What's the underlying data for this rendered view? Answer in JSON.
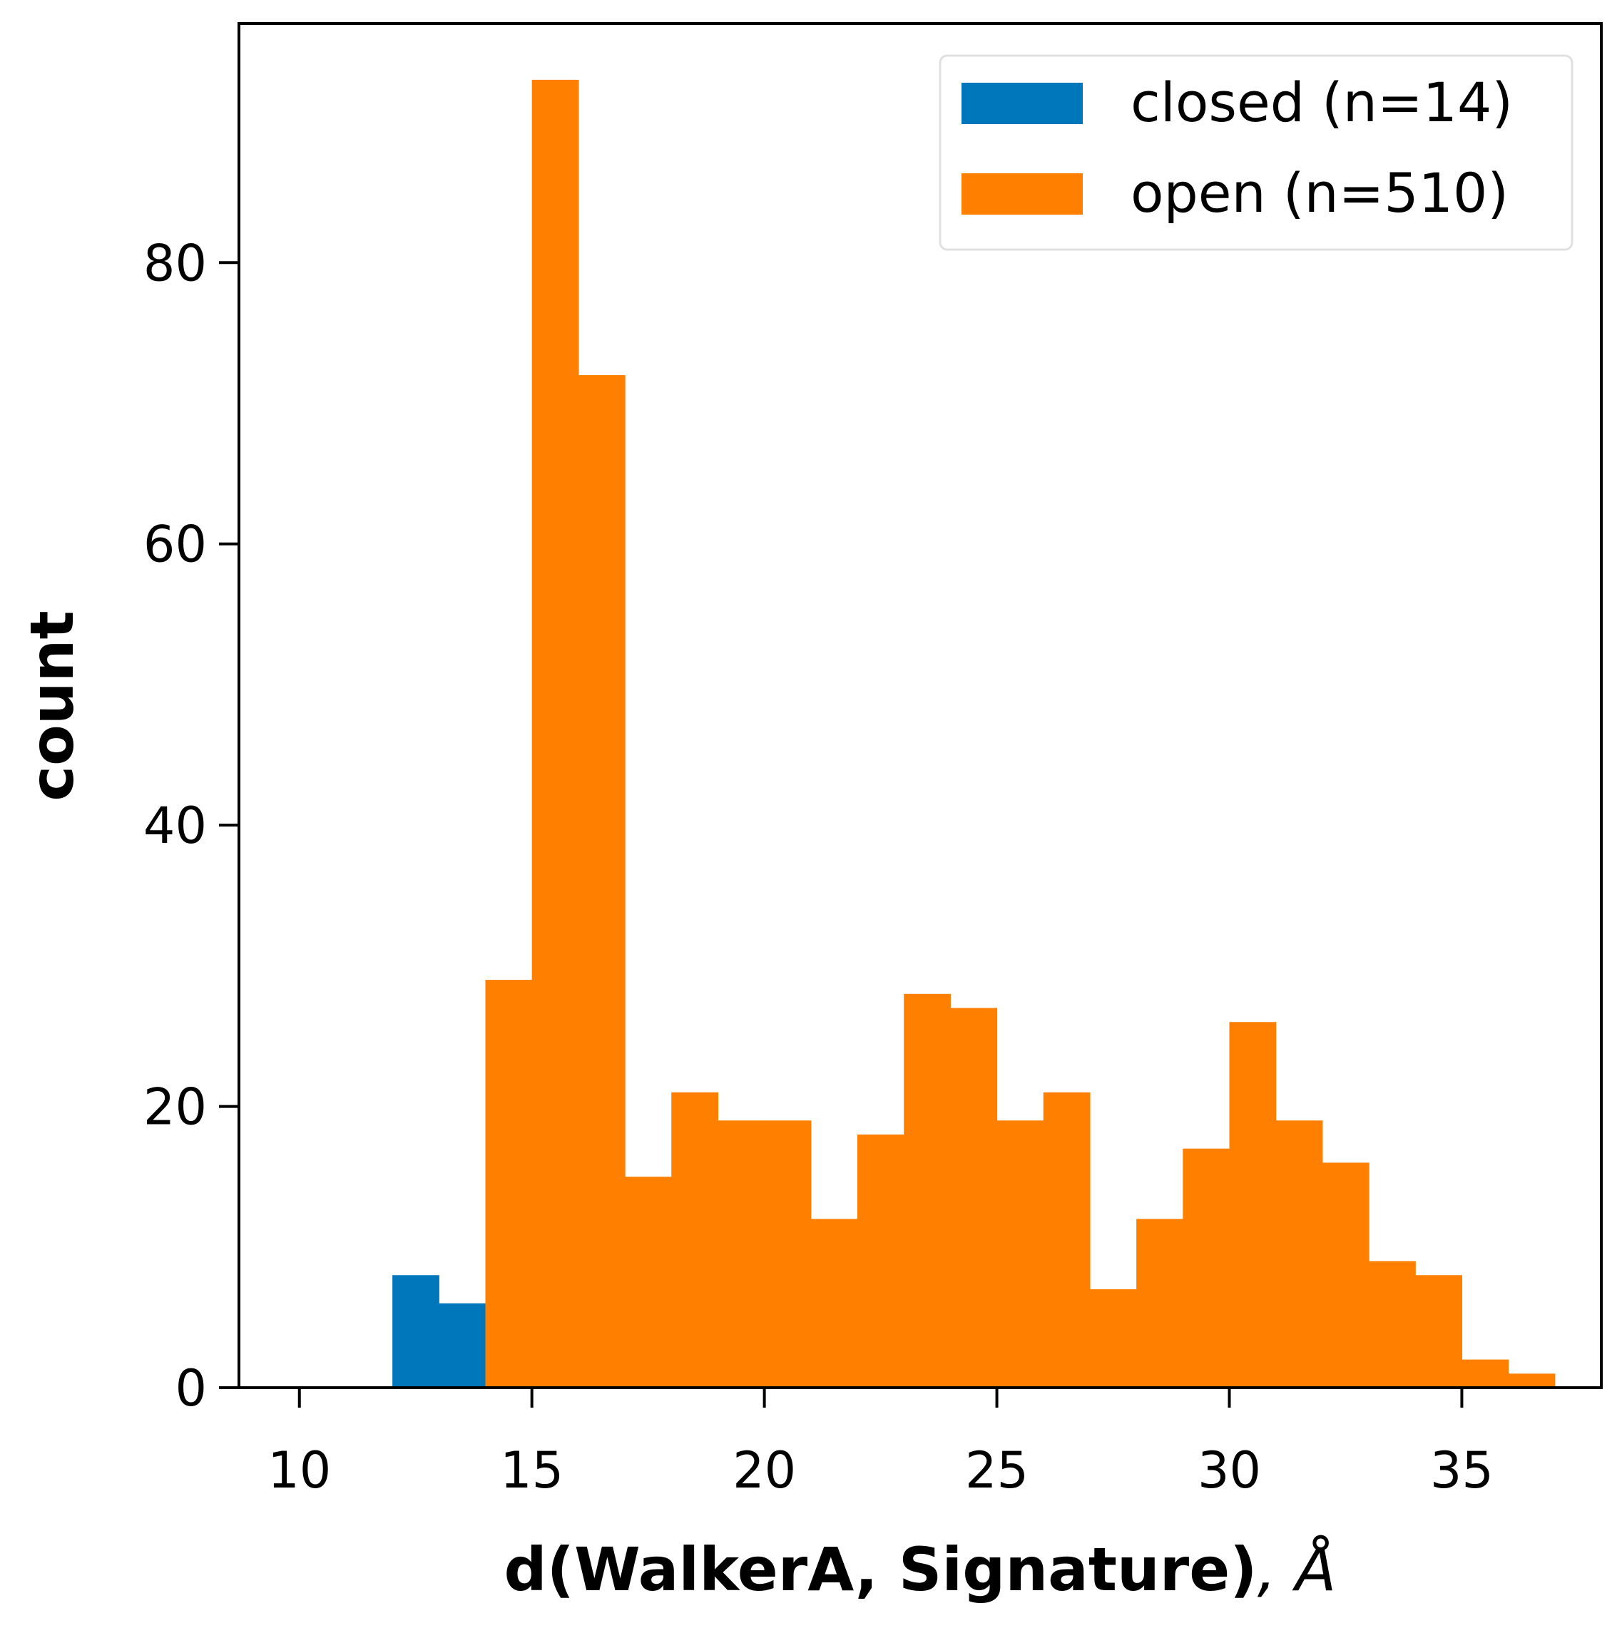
{
  "chart_data": {
    "type": "bar",
    "title": "",
    "xlabel_main": "d(WalkerA, Signature)",
    "xlabel_unit": ", Å",
    "ylabel": "count",
    "xlim": [
      8.7,
      38.0
    ],
    "ylim": [
      0,
      97
    ],
    "xticks": [
      10,
      15,
      20,
      25,
      30,
      35
    ],
    "yticks": [
      0,
      20,
      40,
      60,
      80
    ],
    "grid": false,
    "legend_position": "top-right",
    "series": [
      {
        "name": "closed (n=14)",
        "color": "#0077bb",
        "bins": [
          {
            "x0": 12,
            "x1": 13,
            "count": 8
          },
          {
            "x0": 13,
            "x1": 14,
            "count": 6
          }
        ]
      },
      {
        "name": "open (n=510)",
        "color": "#ff7f00",
        "bins": [
          {
            "x0": 14,
            "x1": 15,
            "count": 29
          },
          {
            "x0": 15,
            "x1": 16,
            "count": 93
          },
          {
            "x0": 16,
            "x1": 17,
            "count": 72
          },
          {
            "x0": 17,
            "x1": 18,
            "count": 15
          },
          {
            "x0": 18,
            "x1": 19,
            "count": 21
          },
          {
            "x0": 19,
            "x1": 20,
            "count": 19
          },
          {
            "x0": 20,
            "x1": 21,
            "count": 19
          },
          {
            "x0": 21,
            "x1": 22,
            "count": 12
          },
          {
            "x0": 22,
            "x1": 23,
            "count": 18
          },
          {
            "x0": 23,
            "x1": 24,
            "count": 28
          },
          {
            "x0": 24,
            "x1": 25,
            "count": 27
          },
          {
            "x0": 25,
            "x1": 26,
            "count": 19
          },
          {
            "x0": 26,
            "x1": 27,
            "count": 21
          },
          {
            "x0": 27,
            "x1": 28,
            "count": 7
          },
          {
            "x0": 28,
            "x1": 29,
            "count": 12
          },
          {
            "x0": 29,
            "x1": 30,
            "count": 17
          },
          {
            "x0": 30,
            "x1": 31,
            "count": 26
          },
          {
            "x0": 31,
            "x1": 32,
            "count": 19
          },
          {
            "x0": 32,
            "x1": 33,
            "count": 16
          },
          {
            "x0": 33,
            "x1": 34,
            "count": 9
          },
          {
            "x0": 34,
            "x1": 35,
            "count": 8
          },
          {
            "x0": 35,
            "x1": 36,
            "count": 2
          },
          {
            "x0": 36,
            "x1": 37,
            "count": 1
          }
        ]
      }
    ]
  }
}
